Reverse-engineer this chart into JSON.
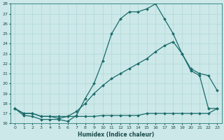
{
  "xlabel": "Humidex (Indice chaleur)",
  "bg_color": "#cce8e8",
  "line_color": "#1a6b6b",
  "grid_color": "#b0d8d8",
  "xlim": [
    -0.5,
    23.5
  ],
  "ylim": [
    16,
    28
  ],
  "xticks": [
    0,
    1,
    2,
    3,
    4,
    5,
    6,
    7,
    8,
    9,
    10,
    11,
    12,
    13,
    14,
    15,
    16,
    17,
    18,
    19,
    20,
    21,
    22,
    23
  ],
  "yticks": [
    16,
    17,
    18,
    19,
    20,
    21,
    22,
    23,
    24,
    25,
    26,
    27,
    28
  ],
  "line1_x": [
    0,
    1,
    2,
    3,
    4,
    5,
    6,
    7,
    8,
    9,
    10,
    11,
    12,
    13,
    14,
    15,
    16,
    17,
    18,
    19,
    20,
    21,
    22,
    23
  ],
  "line1_y": [
    17.5,
    16.8,
    16.7,
    16.4,
    16.4,
    16.4,
    16.2,
    16.8,
    18.5,
    20.0,
    22.3,
    25.0,
    26.5,
    27.2,
    27.2,
    27.5,
    28.0,
    26.5,
    25.0,
    23.0,
    21.5,
    21.0,
    20.8,
    19.3
  ],
  "line2_x": [
    0,
    1,
    2,
    3,
    4,
    5,
    6,
    7,
    8,
    9,
    10,
    11,
    12,
    13,
    14,
    15,
    16,
    17,
    18,
    19,
    20,
    21,
    22,
    23
  ],
  "line2_y": [
    17.5,
    17.0,
    17.0,
    16.7,
    16.7,
    16.7,
    16.7,
    17.2,
    18.0,
    19.0,
    19.8,
    20.5,
    21.0,
    21.5,
    22.0,
    22.5,
    23.2,
    23.8,
    24.2,
    23.0,
    21.3,
    20.8,
    17.5,
    17.5
  ],
  "line3_x": [
    0,
    1,
    2,
    3,
    4,
    5,
    6,
    7,
    8,
    9,
    10,
    11,
    12,
    13,
    14,
    15,
    16,
    17,
    18,
    19,
    20,
    21,
    22,
    23
  ],
  "line3_y": [
    17.5,
    17.0,
    17.0,
    16.7,
    16.7,
    16.5,
    16.7,
    16.7,
    16.7,
    16.7,
    16.8,
    16.8,
    16.8,
    16.8,
    16.8,
    17.0,
    17.0,
    17.0,
    17.0,
    17.0,
    17.0,
    17.0,
    17.0,
    17.5
  ]
}
